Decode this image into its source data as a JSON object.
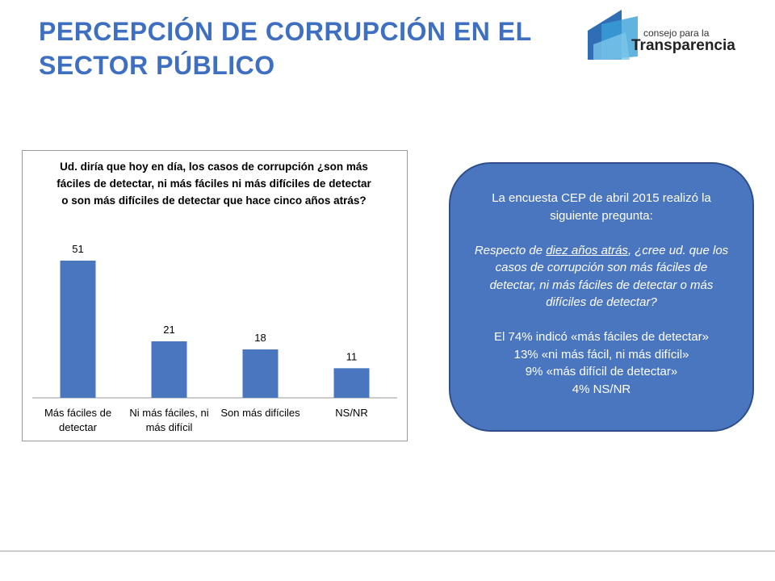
{
  "slide_title": [
    "PERCEPCIÓN DE CORRUPCIÓN EN EL",
    "SECTOR PÚBLICO"
  ],
  "logo": {
    "top": "consejo para la",
    "bottom": "Transparencia"
  },
  "chart_data": {
    "type": "bar",
    "title": "Ud. diría que hoy en día, los casos de corrupción ¿son más fáciles de detectar, ni más fáciles ni más difíciles de detectar o son más difíciles de detectar que hace cinco años atrás?",
    "categories": [
      "Más fáciles de detectar",
      "Ni más fáciles, ni más difícil",
      "Son más difíciles",
      "NS/NR"
    ],
    "values": [
      51,
      21,
      18,
      11
    ],
    "color": "#4a76c0"
  },
  "callout": {
    "intro": "La encuesta CEP de abril 2015 realizó la siguiente pregunta:",
    "question": [
      "Respecto de ",
      "diez años atrás",
      ", ¿cree ud. que los casos de corrupción son más fáciles de detectar, ni más fáciles de detectar o más difíciles de detectar?"
    ],
    "results": [
      "El 74% indicó «más fáciles de detectar»",
      "13% «ni más fácil, ni más difícil»",
      "9% «más difícil de detectar»",
      "4% NS/NR"
    ]
  }
}
